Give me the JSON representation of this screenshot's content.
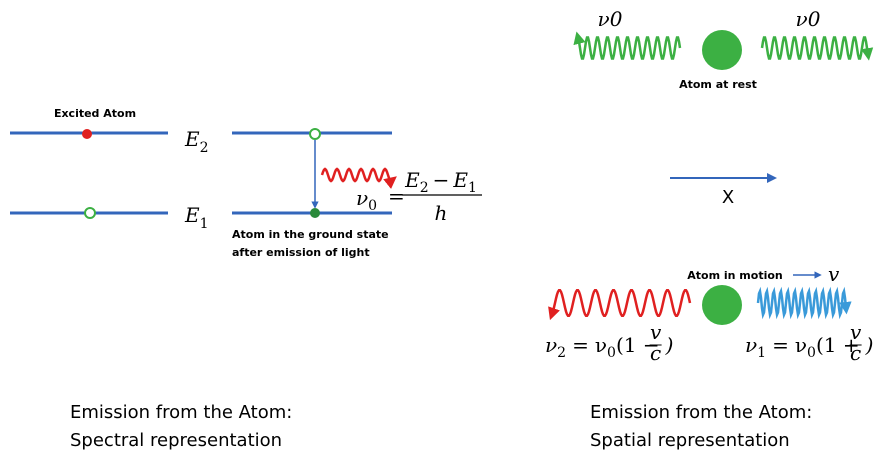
{
  "spectral": {
    "excited_label": "Excited Atom",
    "levels": [
      {
        "symbol": "E",
        "index": "2"
      },
      {
        "symbol": "E",
        "index": "1"
      }
    ],
    "ground_label": [
      "Atom in the ground state",
      "after emission of light"
    ],
    "formula": {
      "lhs": "ν",
      "lhs_index": "0",
      "equals": "=",
      "numerator": [
        "E",
        "2",
        "−",
        "E",
        "1"
      ],
      "denominator": "h"
    },
    "caption": [
      "Emission from the Atom:",
      "Spectral representation"
    ]
  },
  "spatial": {
    "rest_freq": [
      "ν0",
      "ν0"
    ],
    "rest_label": "Atom at rest",
    "axis_label": "X",
    "motion_label": "Atom in motion",
    "velocity": "v",
    "formulas": [
      {
        "nu": "ν",
        "index": "2",
        "equals": "=",
        "base": "ν",
        "base_index": "0",
        "open": "(1 −",
        "num": "v",
        "den": "c",
        "close": ")"
      },
      {
        "nu": "ν",
        "index": "1",
        "equals": "=",
        "base": "ν",
        "base_index": "0",
        "open": "(1 +",
        "num": "v",
        "den": "c",
        "close": ")"
      }
    ],
    "caption": [
      "Emission from the Atom:",
      "Spatial representation"
    ]
  }
}
